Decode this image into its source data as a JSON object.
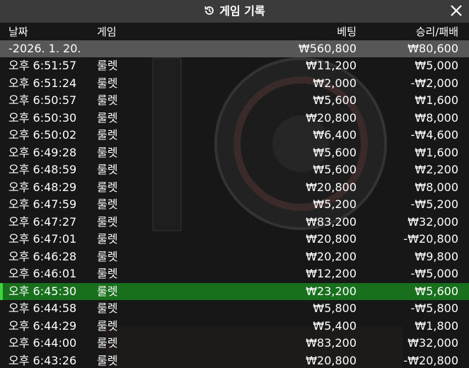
{
  "header": {
    "title": "게임 기록"
  },
  "table": {
    "columns": [
      "날짜",
      "게임",
      "베팅",
      "승리/패배"
    ],
    "date_group": {
      "date": "-2026. 1. 20.",
      "bet": "₩560,800",
      "result": "₩80,600"
    },
    "rows": [
      {
        "time": "오후 6:51:57",
        "game": "룰렛",
        "bet": "₩11,200",
        "result": "₩5,000"
      },
      {
        "time": "오후 6:51:24",
        "game": "룰렛",
        "bet": "₩2,000",
        "result": "-₩2,000"
      },
      {
        "time": "오후 6:50:57",
        "game": "룰렛",
        "bet": "₩5,600",
        "result": "₩1,600"
      },
      {
        "time": "오후 6:50:30",
        "game": "룰렛",
        "bet": "₩20,800",
        "result": "₩8,000"
      },
      {
        "time": "오후 6:50:02",
        "game": "룰렛",
        "bet": "₩6,400",
        "result": "-₩4,600"
      },
      {
        "time": "오후 6:49:28",
        "game": "룰렛",
        "bet": "₩5,600",
        "result": "₩1,600"
      },
      {
        "time": "오후 6:48:59",
        "game": "룰렛",
        "bet": "₩5,600",
        "result": "₩2,200"
      },
      {
        "time": "오후 6:48:29",
        "game": "룰렛",
        "bet": "₩20,800",
        "result": "₩8,000"
      },
      {
        "time": "오후 6:47:59",
        "game": "룰렛",
        "bet": "₩5,200",
        "result": "-₩5,200"
      },
      {
        "time": "오후 6:47:27",
        "game": "룰렛",
        "bet": "₩83,200",
        "result": "₩32,000"
      },
      {
        "time": "오후 6:47:01",
        "game": "룰렛",
        "bet": "₩20,800",
        "result": "-₩20,800"
      },
      {
        "time": "오후 6:46:28",
        "game": "룰렛",
        "bet": "₩20,200",
        "result": "₩9,800"
      },
      {
        "time": "오후 6:46:01",
        "game": "룰렛",
        "bet": "₩12,200",
        "result": "-₩5,000"
      },
      {
        "time": "오후 6:45:30",
        "game": "룰렛",
        "bet": "₩23,200",
        "result": "₩5,600",
        "highlighted": true
      },
      {
        "time": "오후 6:44:58",
        "game": "룰렛",
        "bet": "₩5,800",
        "result": "-₩5,800"
      },
      {
        "time": "오후 6:44:29",
        "game": "룰렛",
        "bet": "₩5,400",
        "result": "₩1,800"
      },
      {
        "time": "오후 6:44:00",
        "game": "룰렛",
        "bet": "₩83,200",
        "result": "₩32,000"
      },
      {
        "time": "오후 6:43:26",
        "game": "룰렛",
        "bet": "₩20,800",
        "result": "-₩20,800"
      }
    ]
  }
}
